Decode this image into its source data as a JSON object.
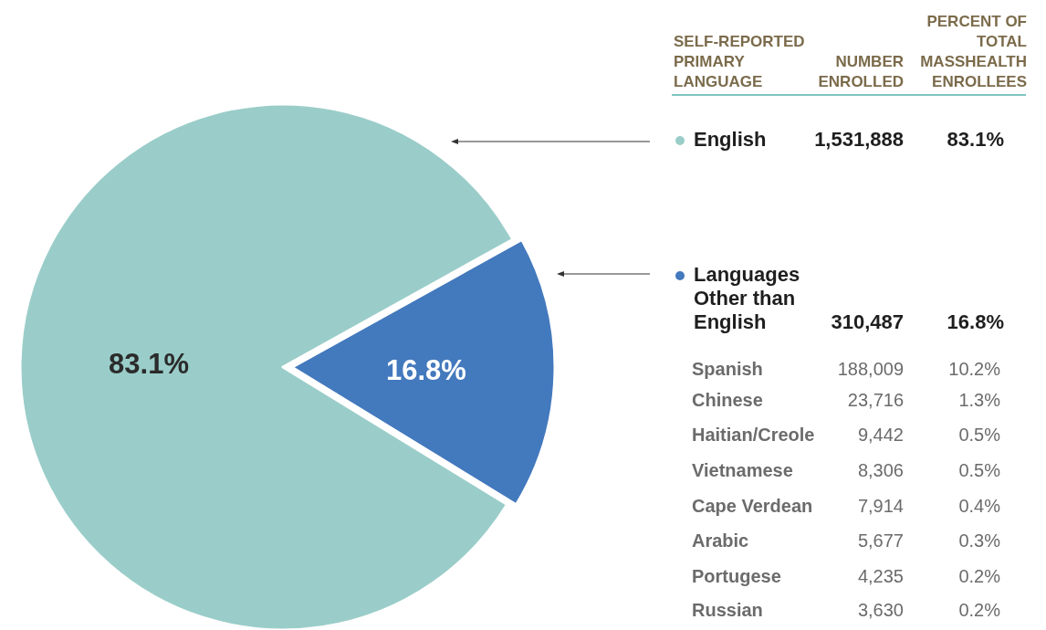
{
  "chart_data": {
    "type": "pie",
    "categories": [
      "English",
      "Languages Other than English"
    ],
    "values": [
      83.1,
      16.8
    ],
    "colors": [
      "#9acdc9",
      "#4379bd"
    ],
    "value_labels": [
      "83.1%",
      "16.8%"
    ],
    "legend": "right",
    "annotations": [
      "SELF-REPORTED PRIMARY LANGUAGE",
      "NUMBER ENROLLED",
      "PERCENT OF TOTAL MASSHEALTH ENROLLEES",
      "1,531,888",
      "310,487",
      "Spanish",
      "188,009",
      "10.2%",
      "Chinese",
      "23,716",
      "1.3%",
      "Haitian/Creole",
      "9,442",
      "0.5%",
      "Vietnamese",
      "8,306",
      "0.5%",
      "Cape Verdean",
      "7,914",
      "0.4%",
      "Arabic",
      "5,677",
      "0.3%",
      "Portugese",
      "4,235",
      "0.2%",
      "Russian",
      "3,630",
      "0.2%"
    ]
  }
}
